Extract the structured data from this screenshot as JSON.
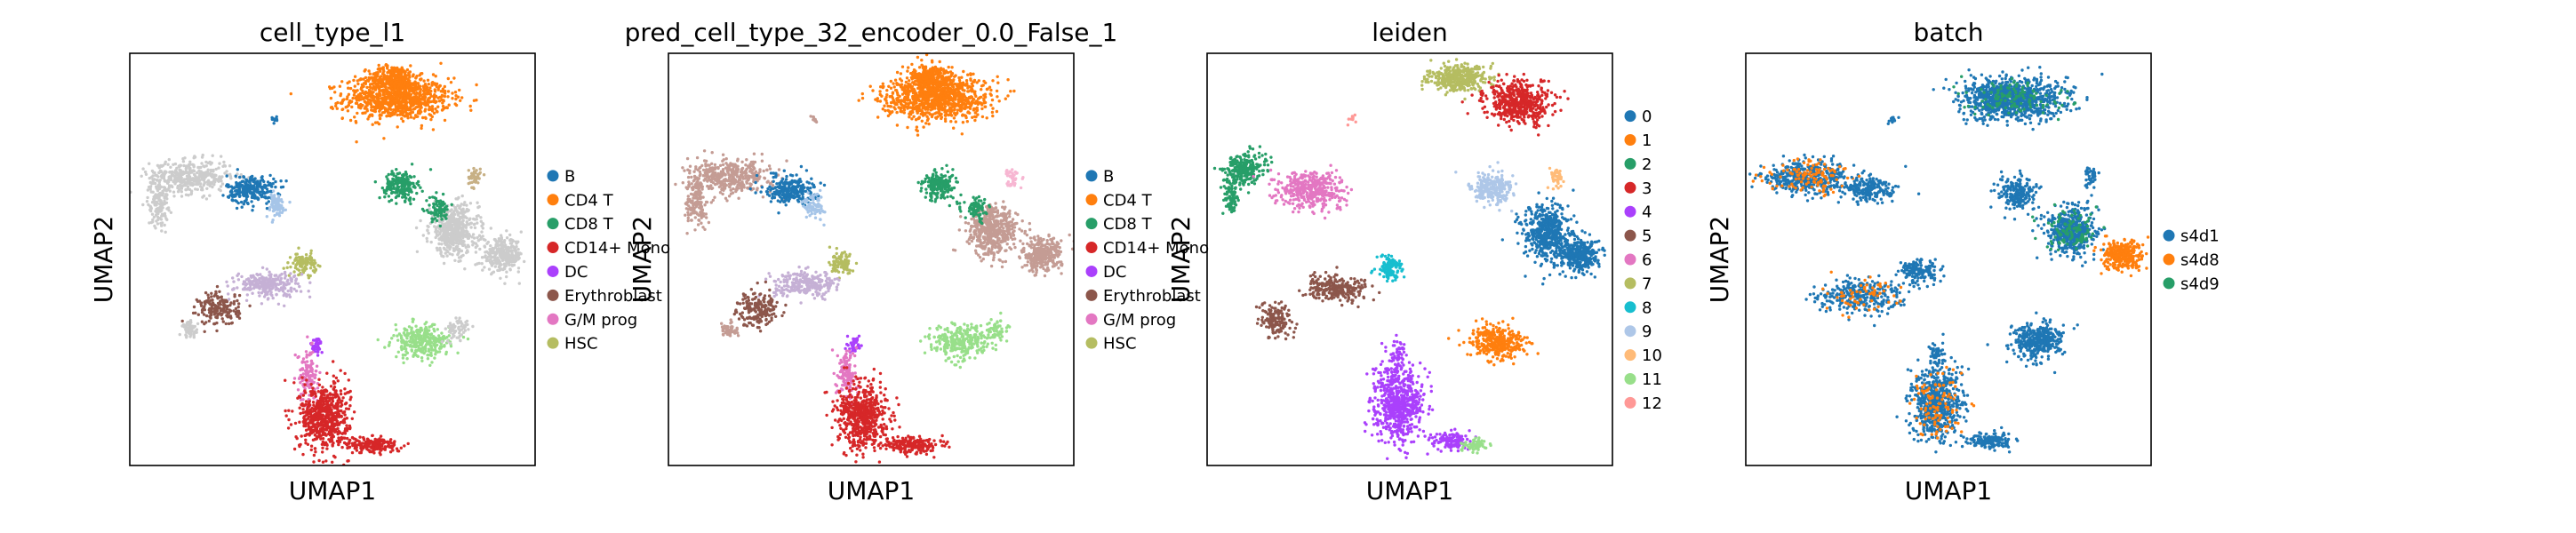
{
  "figure": {
    "background": "#ffffff"
  },
  "chart_data": [
    {
      "type": "scatter",
      "title": "cell_type_l1",
      "xlabel": "UMAP1",
      "ylabel": "UMAP2",
      "grid": false,
      "legend_placement": "right",
      "legend": [
        {
          "label": "B",
          "color": "#1f77b4"
        },
        {
          "label": "CD4 T",
          "color": "#ff7f0e"
        },
        {
          "label": "CD8 T",
          "color": "#279e68"
        },
        {
          "label": "CD14+ Mono",
          "color": "#d62728"
        },
        {
          "label": "DC",
          "color": "#aa40fc"
        },
        {
          "label": "Erythroblast",
          "color": "#8c564b"
        },
        {
          "label": "G/M prog",
          "color": "#e377c2"
        },
        {
          "label": "HSC",
          "color": "#b5bd61"
        }
      ],
      "clusters": [
        {
          "x": 0.66,
          "y": 0.89,
          "rx": 0.13,
          "ry": 0.05,
          "n": 900,
          "color": "#ff7f0e"
        },
        {
          "x": 0.65,
          "y": 0.94,
          "rx": 0.06,
          "ry": 0.03,
          "n": 300,
          "color": "#ff7f0e"
        },
        {
          "x": 0.36,
          "y": 0.84,
          "rx": 0.01,
          "ry": 0.01,
          "n": 10,
          "color": "#1f77b4"
        },
        {
          "x": 0.85,
          "y": 0.7,
          "rx": 0.015,
          "ry": 0.025,
          "n": 40,
          "color": "#c7b085"
        },
        {
          "x": 0.15,
          "y": 0.7,
          "rx": 0.1,
          "ry": 0.04,
          "n": 400,
          "color": "#cccccc"
        },
        {
          "x": 0.07,
          "y": 0.64,
          "rx": 0.025,
          "ry": 0.06,
          "n": 150,
          "color": "#cccccc"
        },
        {
          "x": 0.3,
          "y": 0.67,
          "rx": 0.06,
          "ry": 0.035,
          "n": 250,
          "color": "#1f77b4"
        },
        {
          "x": 0.36,
          "y": 0.63,
          "rx": 0.025,
          "ry": 0.03,
          "n": 80,
          "color": "#a6c5e8"
        },
        {
          "x": 0.67,
          "y": 0.68,
          "rx": 0.04,
          "ry": 0.035,
          "n": 200,
          "color": "#279e68"
        },
        {
          "x": 0.8,
          "y": 0.57,
          "rx": 0.06,
          "ry": 0.06,
          "n": 500,
          "color": "#cccccc"
        },
        {
          "x": 0.92,
          "y": 0.51,
          "rx": 0.05,
          "ry": 0.04,
          "n": 300,
          "color": "#cccccc"
        },
        {
          "x": 0.76,
          "y": 0.62,
          "rx": 0.03,
          "ry": 0.03,
          "n": 80,
          "color": "#279e68"
        },
        {
          "x": 0.43,
          "y": 0.49,
          "rx": 0.03,
          "ry": 0.025,
          "n": 100,
          "color": "#b5bd61"
        },
        {
          "x": 0.34,
          "y": 0.44,
          "rx": 0.08,
          "ry": 0.03,
          "n": 250,
          "color": "#c5b0d5"
        },
        {
          "x": 0.22,
          "y": 0.38,
          "rx": 0.05,
          "ry": 0.04,
          "n": 180,
          "color": "#8c564b"
        },
        {
          "x": 0.15,
          "y": 0.33,
          "rx": 0.02,
          "ry": 0.02,
          "n": 60,
          "color": "#cccccc"
        },
        {
          "x": 0.72,
          "y": 0.3,
          "rx": 0.07,
          "ry": 0.04,
          "n": 300,
          "color": "#98df8a"
        },
        {
          "x": 0.81,
          "y": 0.33,
          "rx": 0.03,
          "ry": 0.03,
          "n": 60,
          "color": "#cccccc"
        },
        {
          "x": 0.46,
          "y": 0.29,
          "rx": 0.015,
          "ry": 0.02,
          "n": 40,
          "color": "#aa40fc"
        },
        {
          "x": 0.44,
          "y": 0.22,
          "rx": 0.025,
          "ry": 0.06,
          "n": 120,
          "color": "#e377c2"
        },
        {
          "x": 0.48,
          "y": 0.12,
          "rx": 0.06,
          "ry": 0.08,
          "n": 600,
          "color": "#d62728"
        },
        {
          "x": 0.6,
          "y": 0.05,
          "rx": 0.07,
          "ry": 0.02,
          "n": 200,
          "color": "#d62728"
        }
      ]
    },
    {
      "type": "scatter",
      "title": "pred_cell_type_32_encoder_0.0_False_1",
      "xlabel": "UMAP1",
      "ylabel": "UMAP2",
      "grid": false,
      "legend_placement": "right",
      "legend": [
        {
          "label": "B",
          "color": "#1f77b4"
        },
        {
          "label": "CD4 T",
          "color": "#ff7f0e"
        },
        {
          "label": "CD8 T",
          "color": "#279e68"
        },
        {
          "label": "CD14+ Mono",
          "color": "#d62728"
        },
        {
          "label": "DC",
          "color": "#aa40fc"
        },
        {
          "label": "Erythroblast",
          "color": "#8c564b"
        },
        {
          "label": "G/M prog",
          "color": "#e377c2"
        },
        {
          "label": "HSC",
          "color": "#b5bd61"
        }
      ],
      "clusters": [
        {
          "x": 0.66,
          "y": 0.89,
          "rx": 0.13,
          "ry": 0.05,
          "n": 900,
          "color": "#ff7f0e"
        },
        {
          "x": 0.65,
          "y": 0.94,
          "rx": 0.06,
          "ry": 0.03,
          "n": 300,
          "color": "#ff7f0e"
        },
        {
          "x": 0.36,
          "y": 0.84,
          "rx": 0.01,
          "ry": 0.01,
          "n": 10,
          "color": "#c49c94"
        },
        {
          "x": 0.85,
          "y": 0.7,
          "rx": 0.015,
          "ry": 0.025,
          "n": 40,
          "color": "#f7b6d2"
        },
        {
          "x": 0.15,
          "y": 0.7,
          "rx": 0.1,
          "ry": 0.04,
          "n": 400,
          "color": "#c49c94"
        },
        {
          "x": 0.07,
          "y": 0.64,
          "rx": 0.025,
          "ry": 0.06,
          "n": 150,
          "color": "#c49c94"
        },
        {
          "x": 0.3,
          "y": 0.67,
          "rx": 0.06,
          "ry": 0.035,
          "n": 250,
          "color": "#1f77b4"
        },
        {
          "x": 0.36,
          "y": 0.63,
          "rx": 0.025,
          "ry": 0.03,
          "n": 80,
          "color": "#a6c5e8"
        },
        {
          "x": 0.67,
          "y": 0.68,
          "rx": 0.04,
          "ry": 0.035,
          "n": 200,
          "color": "#279e68"
        },
        {
          "x": 0.8,
          "y": 0.57,
          "rx": 0.06,
          "ry": 0.06,
          "n": 500,
          "color": "#c49c94"
        },
        {
          "x": 0.92,
          "y": 0.51,
          "rx": 0.05,
          "ry": 0.04,
          "n": 300,
          "color": "#c49c94"
        },
        {
          "x": 0.76,
          "y": 0.62,
          "rx": 0.03,
          "ry": 0.03,
          "n": 80,
          "color": "#279e68"
        },
        {
          "x": 0.43,
          "y": 0.49,
          "rx": 0.03,
          "ry": 0.025,
          "n": 100,
          "color": "#b5bd61"
        },
        {
          "x": 0.34,
          "y": 0.44,
          "rx": 0.08,
          "ry": 0.03,
          "n": 250,
          "color": "#c5b0d5"
        },
        {
          "x": 0.22,
          "y": 0.38,
          "rx": 0.05,
          "ry": 0.04,
          "n": 180,
          "color": "#8c564b"
        },
        {
          "x": 0.15,
          "y": 0.33,
          "rx": 0.02,
          "ry": 0.02,
          "n": 60,
          "color": "#c49c94"
        },
        {
          "x": 0.72,
          "y": 0.3,
          "rx": 0.07,
          "ry": 0.04,
          "n": 300,
          "color": "#98df8a"
        },
        {
          "x": 0.81,
          "y": 0.33,
          "rx": 0.03,
          "ry": 0.03,
          "n": 60,
          "color": "#98df8a"
        },
        {
          "x": 0.46,
          "y": 0.29,
          "rx": 0.015,
          "ry": 0.02,
          "n": 40,
          "color": "#aa40fc"
        },
        {
          "x": 0.44,
          "y": 0.22,
          "rx": 0.025,
          "ry": 0.06,
          "n": 120,
          "color": "#e377c2"
        },
        {
          "x": 0.48,
          "y": 0.12,
          "rx": 0.06,
          "ry": 0.08,
          "n": 600,
          "color": "#d62728"
        },
        {
          "x": 0.6,
          "y": 0.05,
          "rx": 0.07,
          "ry": 0.02,
          "n": 200,
          "color": "#d62728"
        }
      ]
    },
    {
      "type": "scatter",
      "title": "leiden",
      "xlabel": "UMAP1",
      "ylabel": "UMAP2",
      "grid": false,
      "legend_placement": "right",
      "legend": [
        {
          "label": "0",
          "color": "#1f77b4"
        },
        {
          "label": "1",
          "color": "#ff7f0e"
        },
        {
          "label": "2",
          "color": "#279e68"
        },
        {
          "label": "3",
          "color": "#d62728"
        },
        {
          "label": "4",
          "color": "#aa40fc"
        },
        {
          "label": "5",
          "color": "#8c564b"
        },
        {
          "label": "6",
          "color": "#e377c2"
        },
        {
          "label": "7",
          "color": "#b5bd61"
        },
        {
          "label": "8",
          "color": "#17becf"
        },
        {
          "label": "9",
          "color": "#aec7e8"
        },
        {
          "label": "10",
          "color": "#ffbb78"
        },
        {
          "label": "11",
          "color": "#98df8a"
        },
        {
          "label": "12",
          "color": "#ff9896"
        }
      ],
      "clusters": [
        {
          "x": 0.62,
          "y": 0.94,
          "rx": 0.07,
          "ry": 0.03,
          "n": 400,
          "color": "#b5bd61"
        },
        {
          "x": 0.77,
          "y": 0.88,
          "rx": 0.08,
          "ry": 0.05,
          "n": 500,
          "color": "#d62728"
        },
        {
          "x": 0.36,
          "y": 0.84,
          "rx": 0.01,
          "ry": 0.01,
          "n": 10,
          "color": "#ff9896"
        },
        {
          "x": 0.86,
          "y": 0.7,
          "rx": 0.015,
          "ry": 0.025,
          "n": 40,
          "color": "#ffbb78"
        },
        {
          "x": 0.09,
          "y": 0.72,
          "rx": 0.05,
          "ry": 0.04,
          "n": 250,
          "color": "#279e68"
        },
        {
          "x": 0.06,
          "y": 0.65,
          "rx": 0.02,
          "ry": 0.04,
          "n": 80,
          "color": "#279e68"
        },
        {
          "x": 0.26,
          "y": 0.67,
          "rx": 0.08,
          "ry": 0.045,
          "n": 400,
          "color": "#e377c2"
        },
        {
          "x": 0.7,
          "y": 0.67,
          "rx": 0.05,
          "ry": 0.04,
          "n": 250,
          "color": "#aec7e8"
        },
        {
          "x": 0.84,
          "y": 0.56,
          "rx": 0.06,
          "ry": 0.07,
          "n": 500,
          "color": "#1f77b4"
        },
        {
          "x": 0.92,
          "y": 0.51,
          "rx": 0.05,
          "ry": 0.04,
          "n": 350,
          "color": "#1f77b4"
        },
        {
          "x": 0.45,
          "y": 0.48,
          "rx": 0.03,
          "ry": 0.03,
          "n": 120,
          "color": "#17becf"
        },
        {
          "x": 0.32,
          "y": 0.43,
          "rx": 0.08,
          "ry": 0.03,
          "n": 250,
          "color": "#8c564b"
        },
        {
          "x": 0.17,
          "y": 0.35,
          "rx": 0.04,
          "ry": 0.04,
          "n": 150,
          "color": "#8c564b"
        },
        {
          "x": 0.72,
          "y": 0.3,
          "rx": 0.07,
          "ry": 0.04,
          "n": 350,
          "color": "#ff7f0e"
        },
        {
          "x": 0.47,
          "y": 0.27,
          "rx": 0.02,
          "ry": 0.03,
          "n": 50,
          "color": "#aa40fc"
        },
        {
          "x": 0.47,
          "y": 0.15,
          "rx": 0.06,
          "ry": 0.09,
          "n": 650,
          "color": "#aa40fc"
        },
        {
          "x": 0.6,
          "y": 0.06,
          "rx": 0.05,
          "ry": 0.02,
          "n": 120,
          "color": "#aa40fc"
        },
        {
          "x": 0.66,
          "y": 0.05,
          "rx": 0.03,
          "ry": 0.015,
          "n": 60,
          "color": "#98df8a"
        }
      ]
    },
    {
      "type": "scatter",
      "title": "batch",
      "xlabel": "UMAP1",
      "ylabel": "UMAP2",
      "grid": false,
      "legend_placement": "right",
      "legend": [
        {
          "label": "s4d1",
          "color": "#1f77b4"
        },
        {
          "label": "s4d8",
          "color": "#ff7f0e"
        },
        {
          "label": "s4d9",
          "color": "#279e68"
        }
      ],
      "clusters": [
        {
          "x": 0.66,
          "y": 0.89,
          "rx": 0.13,
          "ry": 0.05,
          "n": 900,
          "color": "#1f77b4"
        },
        {
          "x": 0.66,
          "y": 0.89,
          "rx": 0.12,
          "ry": 0.04,
          "n": 120,
          "color": "#279e68"
        },
        {
          "x": 0.36,
          "y": 0.84,
          "rx": 0.01,
          "ry": 0.01,
          "n": 10,
          "color": "#1f77b4"
        },
        {
          "x": 0.85,
          "y": 0.7,
          "rx": 0.015,
          "ry": 0.025,
          "n": 40,
          "color": "#1f77b4"
        },
        {
          "x": 0.15,
          "y": 0.7,
          "rx": 0.1,
          "ry": 0.04,
          "n": 450,
          "color": "#1f77b4"
        },
        {
          "x": 0.15,
          "y": 0.7,
          "rx": 0.1,
          "ry": 0.04,
          "n": 120,
          "color": "#ff7f0e"
        },
        {
          "x": 0.3,
          "y": 0.67,
          "rx": 0.06,
          "ry": 0.035,
          "n": 200,
          "color": "#1f77b4"
        },
        {
          "x": 0.67,
          "y": 0.66,
          "rx": 0.05,
          "ry": 0.04,
          "n": 200,
          "color": "#1f77b4"
        },
        {
          "x": 0.8,
          "y": 0.57,
          "rx": 0.06,
          "ry": 0.06,
          "n": 450,
          "color": "#1f77b4"
        },
        {
          "x": 0.8,
          "y": 0.57,
          "rx": 0.06,
          "ry": 0.06,
          "n": 100,
          "color": "#279e68"
        },
        {
          "x": 0.93,
          "y": 0.51,
          "rx": 0.05,
          "ry": 0.035,
          "n": 300,
          "color": "#ff7f0e"
        },
        {
          "x": 0.43,
          "y": 0.47,
          "rx": 0.05,
          "ry": 0.03,
          "n": 150,
          "color": "#1f77b4"
        },
        {
          "x": 0.28,
          "y": 0.41,
          "rx": 0.1,
          "ry": 0.04,
          "n": 300,
          "color": "#1f77b4"
        },
        {
          "x": 0.28,
          "y": 0.41,
          "rx": 0.1,
          "ry": 0.04,
          "n": 60,
          "color": "#ff7f0e"
        },
        {
          "x": 0.72,
          "y": 0.3,
          "rx": 0.06,
          "ry": 0.045,
          "n": 350,
          "color": "#1f77b4"
        },
        {
          "x": 0.47,
          "y": 0.27,
          "rx": 0.02,
          "ry": 0.03,
          "n": 50,
          "color": "#1f77b4"
        },
        {
          "x": 0.47,
          "y": 0.15,
          "rx": 0.06,
          "ry": 0.09,
          "n": 600,
          "color": "#1f77b4"
        },
        {
          "x": 0.47,
          "y": 0.15,
          "rx": 0.06,
          "ry": 0.09,
          "n": 100,
          "color": "#ff7f0e"
        },
        {
          "x": 0.6,
          "y": 0.06,
          "rx": 0.06,
          "ry": 0.02,
          "n": 150,
          "color": "#1f77b4"
        }
      ]
    }
  ]
}
